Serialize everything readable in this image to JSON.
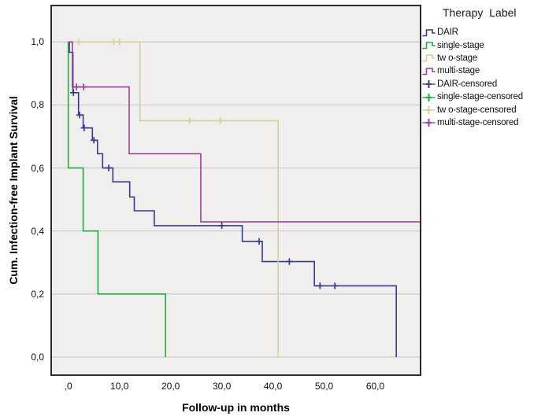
{
  "figure": {
    "kind": "kaplan-meier-survival-plot"
  },
  "chart_data": {
    "type": "line",
    "subtype": "step-survival",
    "title": "",
    "xlabel": "Follow-up in months",
    "ylabel": "Cum. Infection-free Implant Survival",
    "xlim": [
      -3.5,
      69.0
    ],
    "ylim": [
      -0.06,
      1.118
    ],
    "grid": "horizontal-only",
    "plot_bg": "#f0efed",
    "grid_color": "#c9c9c9",
    "frame_color": "#2b2b2b",
    "x_ticks": [
      {
        "v": 0,
        "label": ",0"
      },
      {
        "v": 10,
        "label": "10,0"
      },
      {
        "v": 20,
        "label": "20,0"
      },
      {
        "v": 30,
        "label": "30,0"
      },
      {
        "v": 40,
        "label": "40,0"
      },
      {
        "v": 50,
        "label": "50,0"
      },
      {
        "v": 60,
        "label": "60,0"
      }
    ],
    "y_ticks": [
      {
        "v": 1.0,
        "label": "1,0"
      },
      {
        "v": 0.8,
        "label": "0,8"
      },
      {
        "v": 0.6,
        "label": "0,6"
      },
      {
        "v": 0.4,
        "label": "0,4"
      },
      {
        "v": 0.2,
        "label": "0,2"
      },
      {
        "v": 0.0,
        "label": "0,0"
      }
    ],
    "legend": {
      "title": "Therapy Label",
      "position": "right",
      "items": [
        {
          "label": "DAIR",
          "type": "line",
          "color": "#383b8e"
        },
        {
          "label": "single-stage",
          "type": "line",
          "color": "#1ead3f"
        },
        {
          "label": "tw o-stage",
          "type": "line",
          "color": "#d6cf9b"
        },
        {
          "label": "multi-stage",
          "type": "line",
          "color": "#a03c9c"
        },
        {
          "label": "DAIR-censored",
          "type": "censor",
          "color": "#383b8e"
        },
        {
          "label": "single-stage-censored",
          "type": "censor",
          "color": "#1ead3f"
        },
        {
          "label": "tw o-stage-censored",
          "type": "censor",
          "color": "#d6cf9b"
        },
        {
          "label": "multi-stage-censored",
          "type": "censor",
          "color": "#a03c9c"
        }
      ]
    },
    "series": [
      {
        "name": "DAIR",
        "color": "#383b8e",
        "start": [
          0,
          1.0
        ],
        "steps": [
          [
            0.2,
            0.967
          ],
          [
            0.9,
            0.839
          ],
          [
            2.0,
            0.768
          ],
          [
            2.9,
            0.727
          ],
          [
            4.7,
            0.688
          ],
          [
            5.7,
            0.645
          ],
          [
            6.7,
            0.6
          ],
          [
            8.7,
            0.556
          ],
          [
            12.0,
            0.508
          ],
          [
            12.9,
            0.464
          ],
          [
            16.8,
            0.417
          ],
          [
            34.0,
            0.367
          ],
          [
            37.9,
            0.303
          ],
          [
            48.1,
            0.226
          ],
          [
            64.1,
            0.0
          ]
        ],
        "extend_to": null,
        "censored": [
          [
            1.0,
            0.839
          ],
          [
            2.2,
            0.768
          ],
          [
            3.1,
            0.727
          ],
          [
            5.0,
            0.688
          ],
          [
            7.9,
            0.6
          ],
          [
            30.0,
            0.417
          ],
          [
            37.3,
            0.367
          ],
          [
            43.2,
            0.303
          ],
          [
            49.2,
            0.226
          ],
          [
            52.1,
            0.226
          ]
        ]
      },
      {
        "name": "single-stage",
        "color": "#1ead3f",
        "start": [
          0,
          1.0
        ],
        "steps": [
          [
            0.0,
            0.6
          ],
          [
            2.9,
            0.4
          ],
          [
            5.8,
            0.2
          ],
          [
            19.0,
            0.0
          ]
        ],
        "extend_to": null,
        "censored": []
      },
      {
        "name": "tw o-stage",
        "color": "#d6cf9b",
        "start": [
          0,
          1.0
        ],
        "steps": [
          [
            14.0,
            0.75
          ],
          [
            41.0,
            0.0
          ]
        ],
        "extend_to": null,
        "censored": [
          [
            2.0,
            1.0
          ],
          [
            8.9,
            1.0
          ],
          [
            10.0,
            1.0
          ],
          [
            23.7,
            0.75
          ],
          [
            29.7,
            0.75
          ]
        ]
      },
      {
        "name": "multi-stage",
        "color": "#a03c9c",
        "start": [
          0,
          1.0
        ],
        "steps": [
          [
            0.8,
            0.857
          ],
          [
            11.9,
            0.645
          ],
          [
            25.9,
            0.429
          ]
        ],
        "extend_to": 69.0,
        "censored": [
          [
            1.6,
            0.857
          ],
          [
            3.0,
            0.857
          ]
        ]
      }
    ]
  }
}
